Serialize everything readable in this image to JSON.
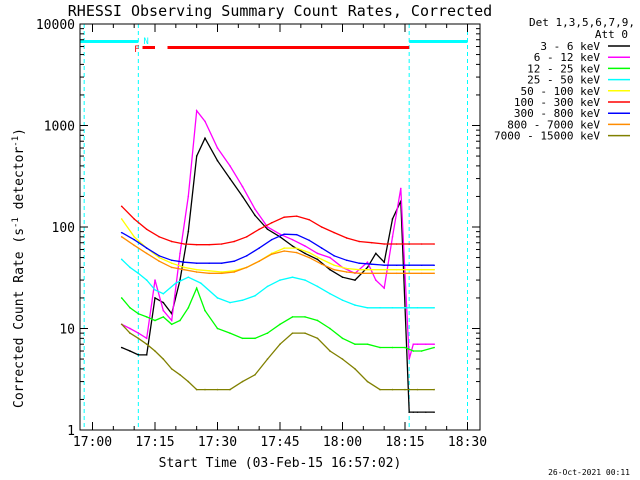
{
  "chart_data": {
    "type": "line",
    "title": "RHESSI Observing Summary Count Rates, Corrected",
    "xlabel": "Start Time (03-Feb-15 16:57:02)",
    "ylabel_main": "Corrected Count Rate (s",
    "ylabel_sup1": "-1",
    "ylabel_mid": " detector",
    "ylabel_sup2": "-1",
    "ylabel_end": ")",
    "yscale": "log",
    "xlim": [
      "16:57",
      "18:33"
    ],
    "ylim": [
      1,
      10000
    ],
    "x_ticks": [
      "17:00",
      "17:15",
      "17:30",
      "17:45",
      "18:00",
      "18:15",
      "18:30"
    ],
    "y_ticks": [
      "1",
      "10",
      "100",
      "1000",
      "10000"
    ],
    "legend_title": [
      "Det 1,3,5,6,7,9,",
      "Att 0"
    ],
    "legend_position": "top-right",
    "footer": "26-Oct-2021 00:11",
    "flags": {
      "orbit_bar": {
        "segments": [
          [
            "16:57",
            "17:11"
          ],
          [
            "18:16",
            "18:30"
          ]
        ],
        "color": "#00ffff"
      },
      "night_marker": {
        "label": "N",
        "time": "17:11"
      },
      "flare_marker": {
        "label": "F"
      },
      "flare_bar": {
        "segments": [
          [
            "17:12",
            "17:15"
          ],
          [
            "17:18",
            "18:16"
          ]
        ],
        "color": "#ff0000"
      },
      "vlines": [
        "16:58",
        "17:11",
        "18:16",
        "18:30"
      ]
    },
    "series": [
      {
        "name": "3 - 6 keV",
        "color": "#000000",
        "x": [
          "17:07",
          "17:09",
          "17:11",
          "17:13",
          "17:15",
          "17:17",
          "17:19",
          "17:21",
          "17:23",
          "17:25",
          "17:27",
          "17:30",
          "17:33",
          "17:36",
          "17:39",
          "17:42",
          "17:45",
          "17:48",
          "17:51",
          "17:54",
          "17:57",
          "18:00",
          "18:03",
          "18:06",
          "18:08",
          "18:10",
          "18:12",
          "18:14",
          "18:16",
          "18:17",
          "18:18",
          "18:20",
          "18:22"
        ],
        "y": [
          6.5,
          6,
          5.5,
          5.5,
          20,
          18,
          14,
          30,
          90,
          500,
          750,
          450,
          300,
          200,
          130,
          95,
          80,
          65,
          55,
          48,
          38,
          32,
          30,
          40,
          55,
          45,
          120,
          180,
          1.5,
          1.5,
          1.5,
          1.5,
          1.5
        ]
      },
      {
        "name": "6 - 12 keV",
        "color": "#ff00ff",
        "x": [
          "17:07",
          "17:09",
          "17:11",
          "17:13",
          "17:15",
          "17:17",
          "17:19",
          "17:21",
          "17:23",
          "17:25",
          "17:27",
          "17:30",
          "17:33",
          "17:36",
          "17:39",
          "17:42",
          "17:45",
          "17:48",
          "17:51",
          "17:54",
          "17:57",
          "18:00",
          "18:03",
          "18:06",
          "18:08",
          "18:10",
          "18:12",
          "18:14",
          "18:16",
          "18:17",
          "18:18",
          "18:20",
          "18:22"
        ],
        "y": [
          11,
          10,
          9,
          8,
          30,
          15,
          12,
          55,
          200,
          1400,
          1100,
          600,
          400,
          250,
          150,
          100,
          85,
          75,
          65,
          55,
          50,
          40,
          35,
          45,
          30,
          25,
          80,
          240,
          5,
          7,
          7,
          7,
          7
        ]
      },
      {
        "name": "12 - 25 keV",
        "color": "#00ff00",
        "x": [
          "17:07",
          "17:09",
          "17:11",
          "17:13",
          "17:15",
          "17:17",
          "17:19",
          "17:21",
          "17:23",
          "17:25",
          "17:27",
          "17:30",
          "17:33",
          "17:36",
          "17:39",
          "17:42",
          "17:45",
          "17:48",
          "17:51",
          "17:54",
          "17:57",
          "18:00",
          "18:03",
          "18:06",
          "18:09",
          "18:12",
          "18:15",
          "18:17",
          "18:19",
          "18:22"
        ],
        "y": [
          20,
          16,
          14,
          13,
          12,
          13,
          11,
          12,
          16,
          25,
          15,
          10,
          9,
          8,
          8,
          9,
          11,
          13,
          13,
          12,
          10,
          8,
          7,
          7,
          6.5,
          6.5,
          6.5,
          6,
          6,
          6.5
        ]
      },
      {
        "name": "25 - 50 keV",
        "color": "#00ffff",
        "x": [
          "17:07",
          "17:09",
          "17:11",
          "17:13",
          "17:15",
          "17:17",
          "17:20",
          "17:23",
          "17:26",
          "17:30",
          "17:33",
          "17:36",
          "17:39",
          "17:42",
          "17:45",
          "17:48",
          "17:51",
          "17:54",
          "17:57",
          "18:00",
          "18:03",
          "18:06",
          "18:09",
          "18:12",
          "18:15",
          "18:18",
          "18:22"
        ],
        "y": [
          48,
          40,
          35,
          30,
          24,
          22,
          28,
          32,
          28,
          20,
          18,
          19,
          21,
          26,
          30,
          32,
          30,
          26,
          22,
          19,
          17,
          16,
          16,
          16,
          16,
          16,
          16
        ]
      },
      {
        "name": "50 - 100 keV",
        "color": "#ffff00",
        "x": [
          "17:07",
          "17:10",
          "17:13",
          "17:16",
          "17:19",
          "17:22",
          "17:25",
          "17:28",
          "17:31",
          "17:34",
          "17:37",
          "17:40",
          "17:43",
          "17:46",
          "17:49",
          "17:52",
          "17:55",
          "17:58",
          "18:01",
          "18:04",
          "18:07",
          "18:10",
          "18:13",
          "18:16",
          "18:19",
          "18:22"
        ],
        "y": [
          120,
          80,
          62,
          50,
          44,
          40,
          38,
          37,
          36,
          37,
          40,
          46,
          55,
          62,
          62,
          56,
          48,
          42,
          39,
          38,
          38,
          38,
          38,
          38,
          38,
          38
        ]
      },
      {
        "name": "100 - 300 keV",
        "color": "#ff0000",
        "x": [
          "17:07",
          "17:10",
          "17:13",
          "17:16",
          "17:19",
          "17:22",
          "17:25",
          "17:28",
          "17:31",
          "17:34",
          "17:37",
          "17:40",
          "17:43",
          "17:46",
          "17:49",
          "17:52",
          "17:55",
          "17:58",
          "18:01",
          "18:04",
          "18:07",
          "18:10",
          "18:13",
          "18:16",
          "18:19",
          "18:22"
        ],
        "y": [
          160,
          120,
          95,
          80,
          72,
          68,
          67,
          67,
          68,
          72,
          80,
          95,
          110,
          125,
          128,
          118,
          100,
          88,
          78,
          72,
          70,
          68,
          68,
          68,
          68,
          68
        ]
      },
      {
        "name": "300 - 800 keV",
        "color": "#0000ff",
        "x": [
          "17:07",
          "17:10",
          "17:13",
          "17:16",
          "17:19",
          "17:22",
          "17:25",
          "17:28",
          "17:31",
          "17:34",
          "17:37",
          "17:40",
          "17:43",
          "17:46",
          "17:49",
          "17:52",
          "17:55",
          "17:58",
          "18:01",
          "18:04",
          "18:07",
          "18:10",
          "18:13",
          "18:16",
          "18:19",
          "18:22"
        ],
        "y": [
          88,
          75,
          62,
          52,
          47,
          45,
          44,
          44,
          44,
          46,
          52,
          62,
          75,
          85,
          84,
          74,
          62,
          52,
          47,
          44,
          43,
          42,
          42,
          42,
          42,
          42
        ]
      },
      {
        "name": "800 - 7000 keV",
        "color": "#ff8c00",
        "x": [
          "17:07",
          "17:10",
          "17:13",
          "17:16",
          "17:19",
          "17:22",
          "17:25",
          "17:28",
          "17:31",
          "17:34",
          "17:37",
          "17:40",
          "17:43",
          "17:46",
          "17:49",
          "17:52",
          "17:55",
          "17:58",
          "18:01",
          "18:04",
          "18:07",
          "18:10",
          "18:13",
          "18:16",
          "18:19",
          "18:22"
        ],
        "y": [
          80,
          66,
          55,
          46,
          40,
          38,
          36,
          35,
          35,
          36,
          40,
          46,
          54,
          58,
          56,
          50,
          43,
          38,
          36,
          35,
          35,
          35,
          35,
          35,
          35,
          35
        ]
      },
      {
        "name": "7000 - 15000 keV",
        "color": "#808000",
        "x": [
          "17:07",
          "17:09",
          "17:11",
          "17:13",
          "17:15",
          "17:17",
          "17:19",
          "17:21",
          "17:23",
          "17:25",
          "17:27",
          "17:30",
          "17:33",
          "17:36",
          "17:39",
          "17:42",
          "17:45",
          "17:48",
          "17:51",
          "17:54",
          "17:57",
          "18:00",
          "18:03",
          "18:06",
          "18:09",
          "18:12",
          "18:15",
          "18:18",
          "18:22"
        ],
        "y": [
          11,
          9,
          8,
          7,
          6,
          5,
          4,
          3.5,
          3,
          2.5,
          2.5,
          2.5,
          2.5,
          3,
          3.5,
          5,
          7,
          9,
          9,
          8,
          6,
          5,
          4,
          3,
          2.5,
          2.5,
          2.5,
          2.5,
          2.5
        ]
      }
    ]
  }
}
